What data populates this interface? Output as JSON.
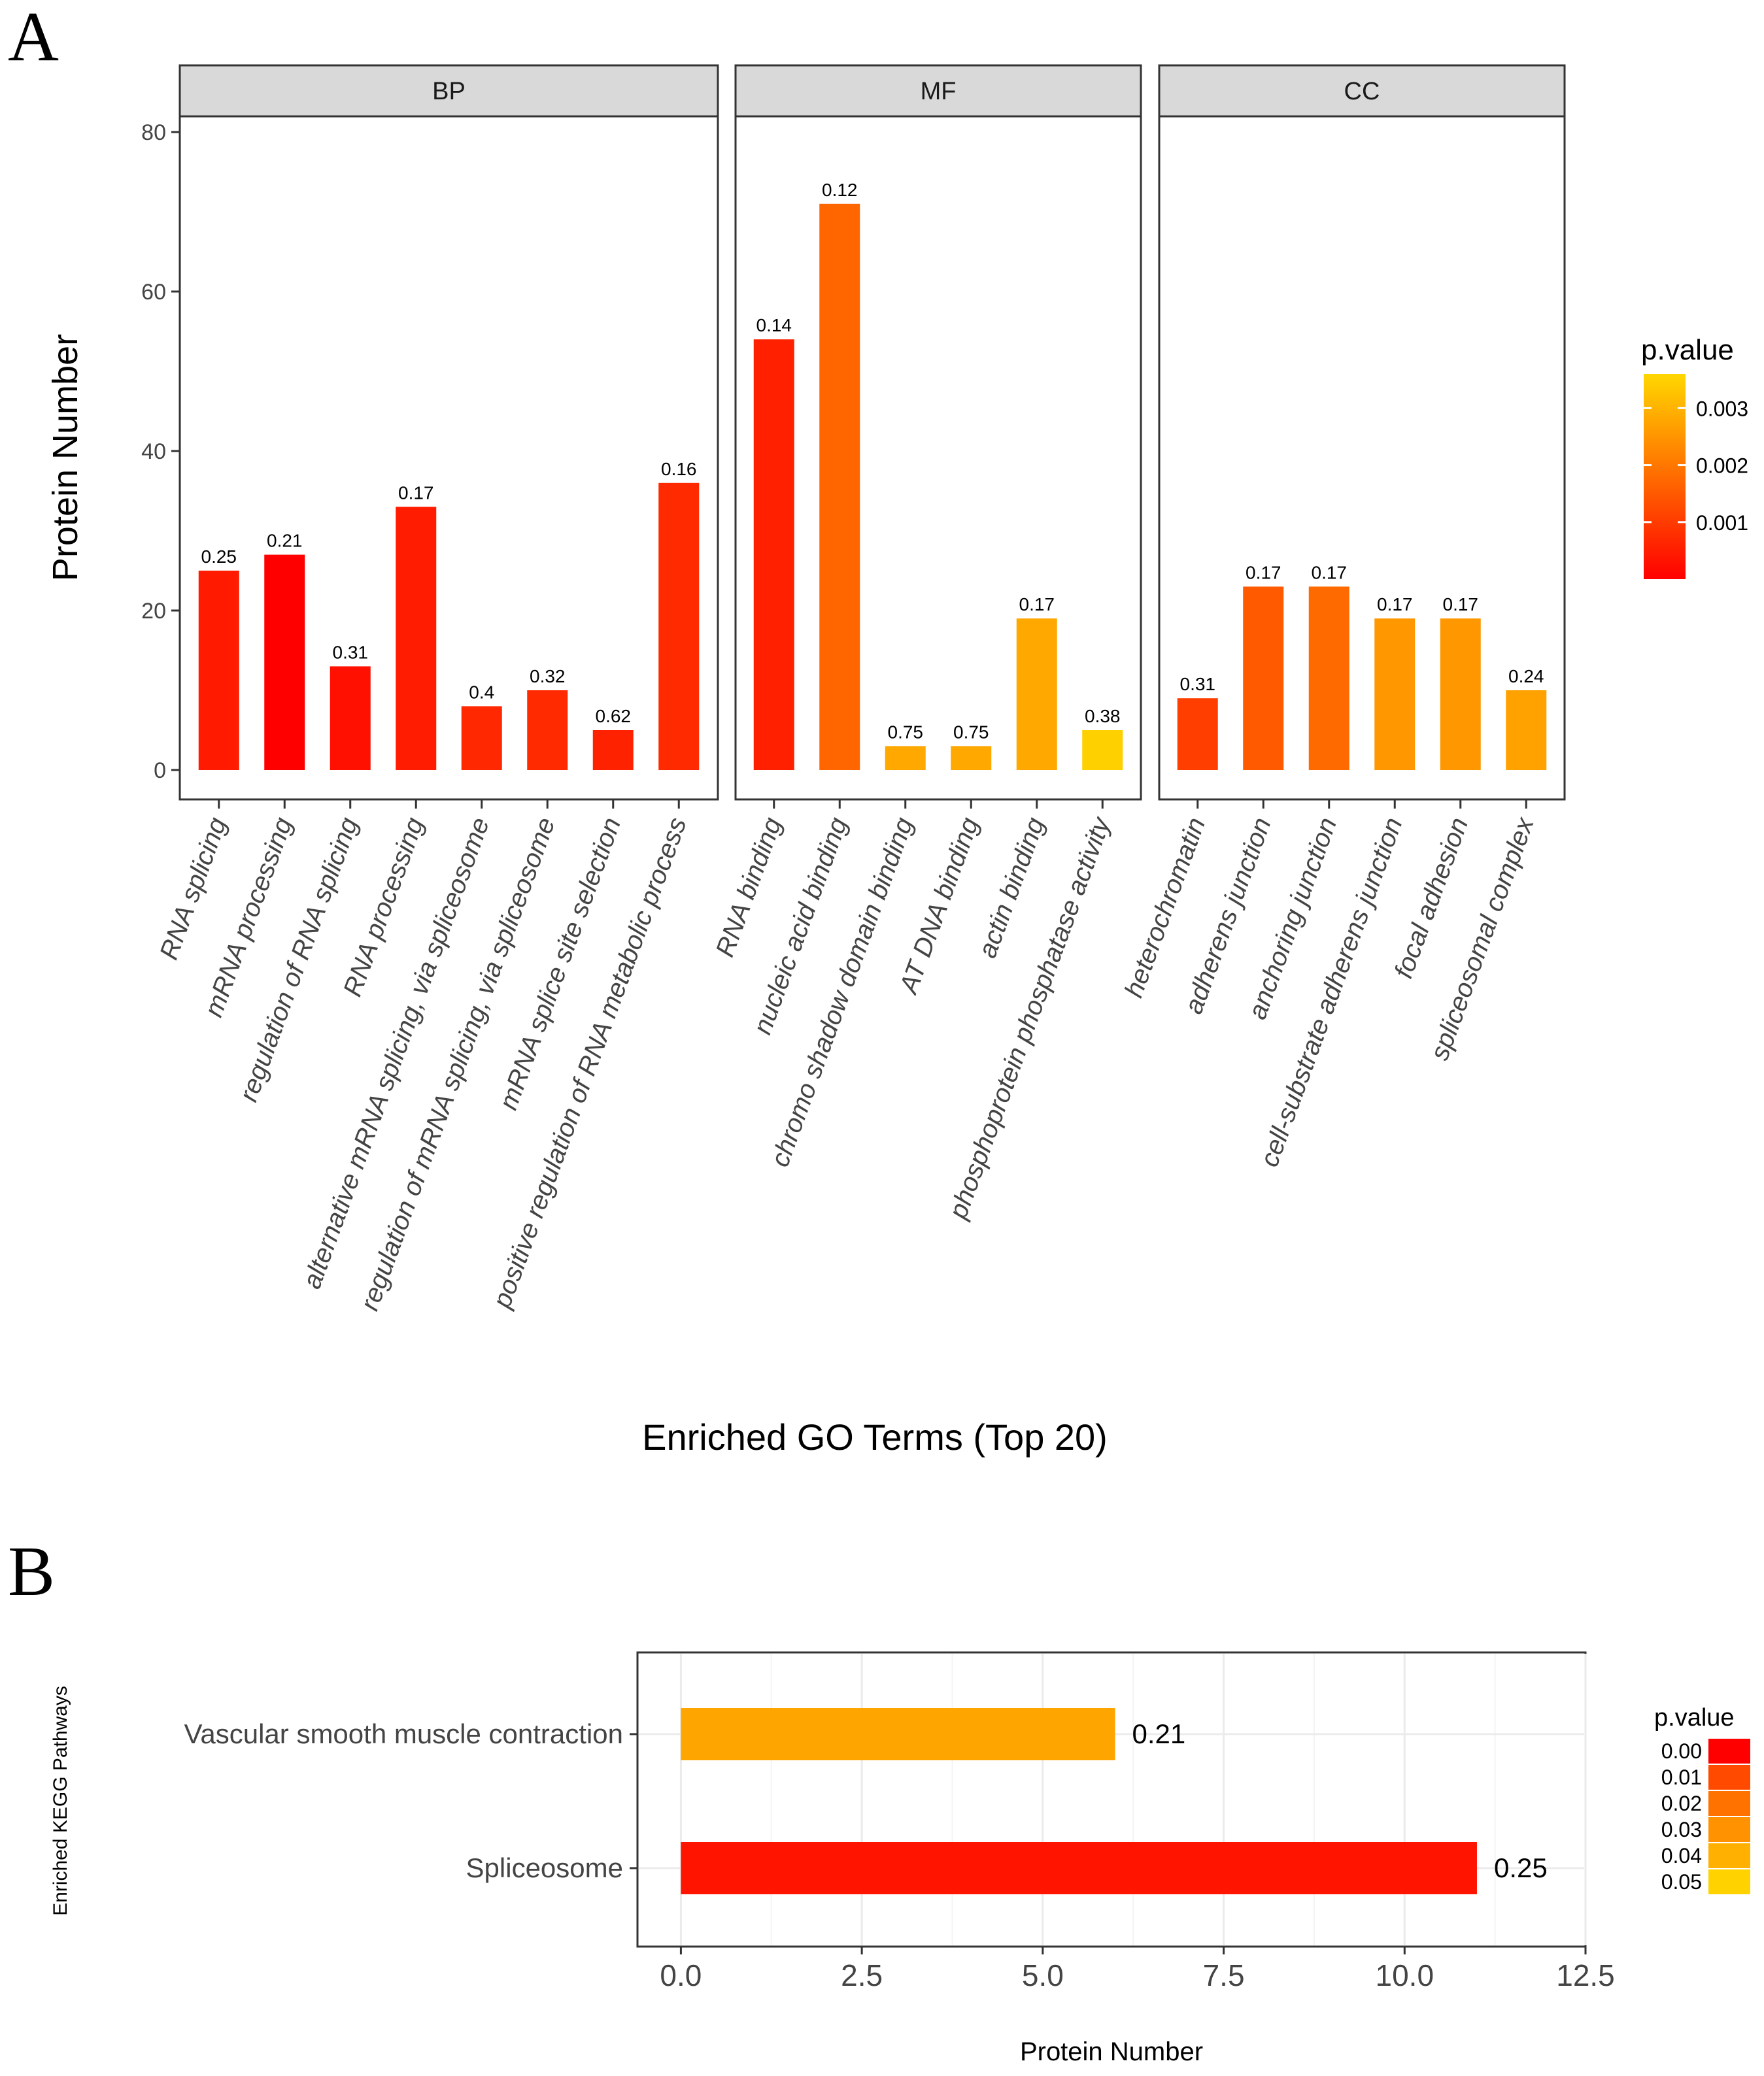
{
  "chart_data": [
    {
      "panel_label": "A",
      "type": "bar",
      "xlabel": "Enriched GO Terms (Top 20)",
      "ylabel": "Protein Number",
      "ylim": [
        0,
        80
      ],
      "y_ticks": [
        "0",
        "20",
        "40",
        "60",
        "80"
      ],
      "grid": false,
      "legend": {
        "title": "p.value",
        "position": "right",
        "ticks": [
          "0.003",
          "0.002",
          "0.001"
        ],
        "tick_values": [
          0.003,
          0.002,
          0.001
        ],
        "range": [
          0.0,
          0.0036
        ],
        "low_color": "#ff0000",
        "high_color": "#ffd700"
      },
      "facets": [
        {
          "name": "BP",
          "categories": [
            "RNA splicing",
            "mRNA processing",
            "regulation of RNA splicing",
            "RNA processing",
            "alternative mRNA splicing, via spliceosome",
            "regulation of mRNA splicing, via spliceosome",
            "mRNA splice site selection",
            "positive regulation of RNA metabolic process"
          ],
          "values": [
            25,
            27,
            13,
            33,
            8,
            10,
            5,
            36
          ],
          "labels": [
            "0.25",
            "0.21",
            "0.31",
            "0.17",
            "0.4",
            "0.32",
            "0.62",
            "0.16"
          ],
          "colors": [
            "#ff1a00",
            "#ff0000",
            "#ff1000",
            "#ff1c00",
            "#ff2800",
            "#ff2a00",
            "#ff2200",
            "#ff2a00"
          ]
        },
        {
          "name": "MF",
          "categories": [
            "RNA binding",
            "nucleic acid binding",
            "chromo shadow domain binding",
            "AT DNA binding",
            "actin binding",
            "phosphoprotein phosphatase activity"
          ],
          "values": [
            54,
            71,
            3,
            3,
            19,
            5
          ],
          "labels": [
            "0.14",
            "0.12",
            "0.75",
            "0.75",
            "0.17",
            "0.38"
          ],
          "colors": [
            "#ff2000",
            "#ff6600",
            "#ffa800",
            "#ffa800",
            "#ffa800",
            "#ffd000"
          ]
        },
        {
          "name": "CC",
          "categories": [
            "heterochromatin",
            "adherens junction",
            "anchoring junction",
            "cell-substrate adherens junction",
            "focal adhesion",
            "spliceosomal complex"
          ],
          "values": [
            9,
            23,
            23,
            19,
            19,
            10
          ],
          "labels": [
            "0.31",
            "0.17",
            "0.17",
            "0.17",
            "0.17",
            "0.24"
          ],
          "colors": [
            "#ff3e00",
            "#ff5a00",
            "#ff6a00",
            "#ff9800",
            "#ff9800",
            "#ffa200"
          ]
        }
      ]
    },
    {
      "panel_label": "B",
      "type": "bar",
      "orientation": "horizontal",
      "categories": [
        "Vascular smooth muscle contraction",
        "Spliceosome"
      ],
      "values": [
        6,
        11
      ],
      "labels": [
        "0.21",
        "0.25"
      ],
      "colors": [
        "#ffa500",
        "#ff1400"
      ],
      "xlabel": "Protein Number",
      "ylabel": "Enriched KEGG Pathways",
      "xlim": [
        -0.6,
        12.5
      ],
      "x_ticks": [
        "0.0",
        "2.5",
        "5.0",
        "7.5",
        "10.0",
        "12.5"
      ],
      "x_tick_values": [
        0,
        2.5,
        5,
        7.5,
        10,
        12.5
      ],
      "grid": true,
      "legend": {
        "title": "p.value",
        "position": "right",
        "entries": [
          "0.00",
          "0.01",
          "0.02",
          "0.03",
          "0.04",
          "0.05"
        ],
        "colors": [
          "#ff0000",
          "#ff4a00",
          "#ff7200",
          "#ff9200",
          "#ffb000",
          "#ffd200"
        ]
      }
    }
  ]
}
